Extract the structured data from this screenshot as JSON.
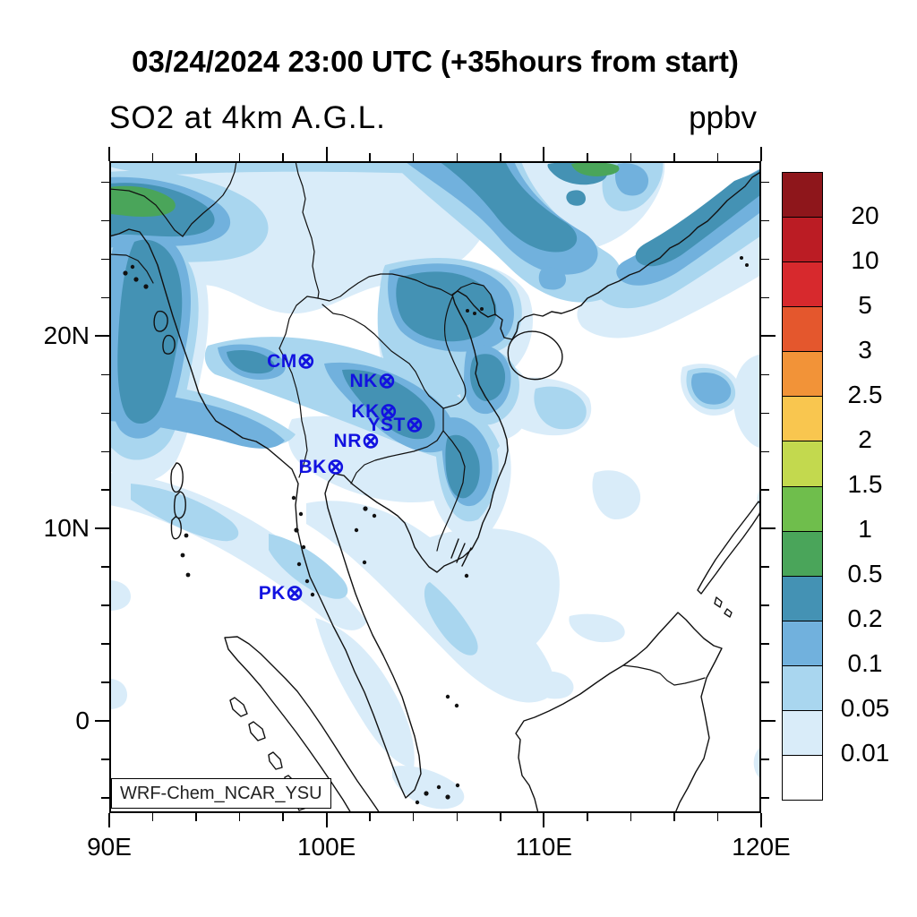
{
  "header": {
    "title": "03/24/2024 23:00 UTC (+35hours from start)",
    "subtitle_left": "SO2 at 4km A.G.L.",
    "units_label": "ppbv"
  },
  "annotation_box": {
    "text": "WRF-Chem_NCAR_YSU"
  },
  "chart_data": {
    "type": "map-contour",
    "title": "03/24/2024 23:00 UTC (+35hours from start)",
    "variable": "SO2",
    "level": "4km A.G.L.",
    "units": "ppbv",
    "model": "WRF-Chem_NCAR_YSU",
    "x_axis": {
      "min": 90,
      "max": 120,
      "minor_step": 2,
      "major_ticks": [
        {
          "value": 90,
          "label": "90E"
        },
        {
          "value": 100,
          "label": "100E"
        },
        {
          "value": 110,
          "label": "110E"
        },
        {
          "value": 120,
          "label": "120E"
        }
      ]
    },
    "y_axis": {
      "min": -4.8,
      "max": 29.1,
      "minor_step": 2,
      "major_ticks": [
        {
          "value": 0,
          "label": "0"
        },
        {
          "value": 10,
          "label": "10N"
        },
        {
          "value": 20,
          "label": "20N"
        }
      ]
    },
    "colorbar": {
      "boundary_labels": [
        "20",
        "10",
        "5",
        "3",
        "2.5",
        "2",
        "1.5",
        "1",
        "0.5",
        "0.2",
        "0.1",
        "0.05",
        "0.01"
      ],
      "cell_colors_top_to_bottom": [
        "#8e161b",
        "#bb1c24",
        "#d7292d",
        "#e4572d",
        "#f29338",
        "#f9c64f",
        "#c3d94e",
        "#6fbe4c",
        "#4aa55a",
        "#4492b4",
        "#71b1dd",
        "#a9d6ef",
        "#d9ecf9",
        "#ffffff"
      ]
    },
    "stations": {
      "marker_glyph": "⊗",
      "color": "#1212e0",
      "list": [
        {
          "label": "CM",
          "lon": 98.98,
          "lat": 18.67
        },
        {
          "label": "NK",
          "lon": 102.69,
          "lat": 17.64
        },
        {
          "label": "KK",
          "lon": 102.77,
          "lat": 16.06
        },
        {
          "label": "YST",
          "lon": 103.97,
          "lat": 15.36
        },
        {
          "label": "NR",
          "lon": 101.95,
          "lat": 14.52
        },
        {
          "label": "BK",
          "lon": 100.34,
          "lat": 13.17
        },
        {
          "label": "PK",
          "lon": 98.45,
          "lat": 6.6
        }
      ]
    },
    "field_features": [
      {
        "region": "northwest corner band (Bangladesh / NE India)",
        "peak_range_ppbv": "0.5-1"
      },
      {
        "region": "Myanmar coastal band along ~93E",
        "peak_range_ppbv": "0.2-0.5"
      },
      {
        "region": "northern Thailand-Laos band (CM through NK)",
        "peak_range_ppbv": "0.2-0.5"
      },
      {
        "region": "northern Vietnam / Gulf of Tonkin",
        "peak_range_ppbv": "0.2-0.5"
      },
      {
        "region": "top-center plume near 103E 29N",
        "peak_range_ppbv": "0.5-1"
      },
      {
        "region": "southeast China coastal band to NE corner",
        "peak_range_ppbv": "0.2-0.5"
      },
      {
        "region": "central Vietnam coast blob near 106E 14N",
        "peak_range_ppbv": "0.2-0.5"
      },
      {
        "region": "southern half of domain",
        "peak_range_ppbv": "mostly <0.05 with 0.01-0.05 streaks"
      }
    ]
  }
}
